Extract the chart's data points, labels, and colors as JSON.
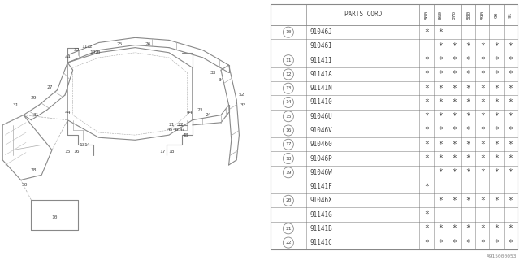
{
  "bg_color": "#f5f5f5",
  "header_cols": [
    "800",
    "860",
    "870",
    "880",
    "890",
    "90",
    "91"
  ],
  "rows": [
    {
      "ref": "10",
      "code": "91046J",
      "stars": [
        1,
        1,
        0,
        0,
        0,
        0,
        0
      ],
      "group_row": 0,
      "group_size": 2
    },
    {
      "ref": "",
      "code": "91046I",
      "stars": [
        0,
        1,
        1,
        1,
        1,
        1,
        1
      ],
      "group_row": 1,
      "group_size": 2
    },
    {
      "ref": "11",
      "code": "91141I",
      "stars": [
        1,
        1,
        1,
        1,
        1,
        1,
        1
      ],
      "group_row": 0,
      "group_size": 1
    },
    {
      "ref": "12",
      "code": "91141A",
      "stars": [
        1,
        1,
        1,
        1,
        1,
        1,
        1
      ],
      "group_row": 0,
      "group_size": 1
    },
    {
      "ref": "13",
      "code": "91141N",
      "stars": [
        1,
        1,
        1,
        1,
        1,
        1,
        1
      ],
      "group_row": 0,
      "group_size": 1
    },
    {
      "ref": "14",
      "code": "911410",
      "stars": [
        1,
        1,
        1,
        1,
        1,
        1,
        1
      ],
      "group_row": 0,
      "group_size": 1
    },
    {
      "ref": "15",
      "code": "91046U",
      "stars": [
        1,
        1,
        1,
        1,
        1,
        1,
        1
      ],
      "group_row": 0,
      "group_size": 1
    },
    {
      "ref": "16",
      "code": "91046V",
      "stars": [
        1,
        1,
        1,
        1,
        1,
        1,
        1
      ],
      "group_row": 0,
      "group_size": 1
    },
    {
      "ref": "17",
      "code": "910460",
      "stars": [
        1,
        1,
        1,
        1,
        1,
        1,
        1
      ],
      "group_row": 0,
      "group_size": 1
    },
    {
      "ref": "18",
      "code": "91046P",
      "stars": [
        1,
        1,
        1,
        1,
        1,
        1,
        1
      ],
      "group_row": 0,
      "group_size": 1
    },
    {
      "ref": "19",
      "code": "91046W",
      "stars": [
        0,
        1,
        1,
        1,
        1,
        1,
        1
      ],
      "group_row": 0,
      "group_size": 2
    },
    {
      "ref": "",
      "code": "91141F",
      "stars": [
        1,
        0,
        0,
        0,
        0,
        0,
        0
      ],
      "group_row": 1,
      "group_size": 2
    },
    {
      "ref": "20",
      "code": "91046X",
      "stars": [
        0,
        1,
        1,
        1,
        1,
        1,
        1
      ],
      "group_row": 0,
      "group_size": 2
    },
    {
      "ref": "",
      "code": "91141G",
      "stars": [
        1,
        0,
        0,
        0,
        0,
        0,
        0
      ],
      "group_row": 1,
      "group_size": 2
    },
    {
      "ref": "21",
      "code": "91141B",
      "stars": [
        1,
        1,
        1,
        1,
        1,
        1,
        1
      ],
      "group_row": 0,
      "group_size": 1
    },
    {
      "ref": "22",
      "code": "91141C",
      "stars": [
        1,
        1,
        1,
        1,
        1,
        1,
        1
      ],
      "group_row": 0,
      "group_size": 1
    }
  ],
  "footer": "A915000053",
  "line_color": "#888888",
  "text_color": "#444444",
  "star_char": "*"
}
